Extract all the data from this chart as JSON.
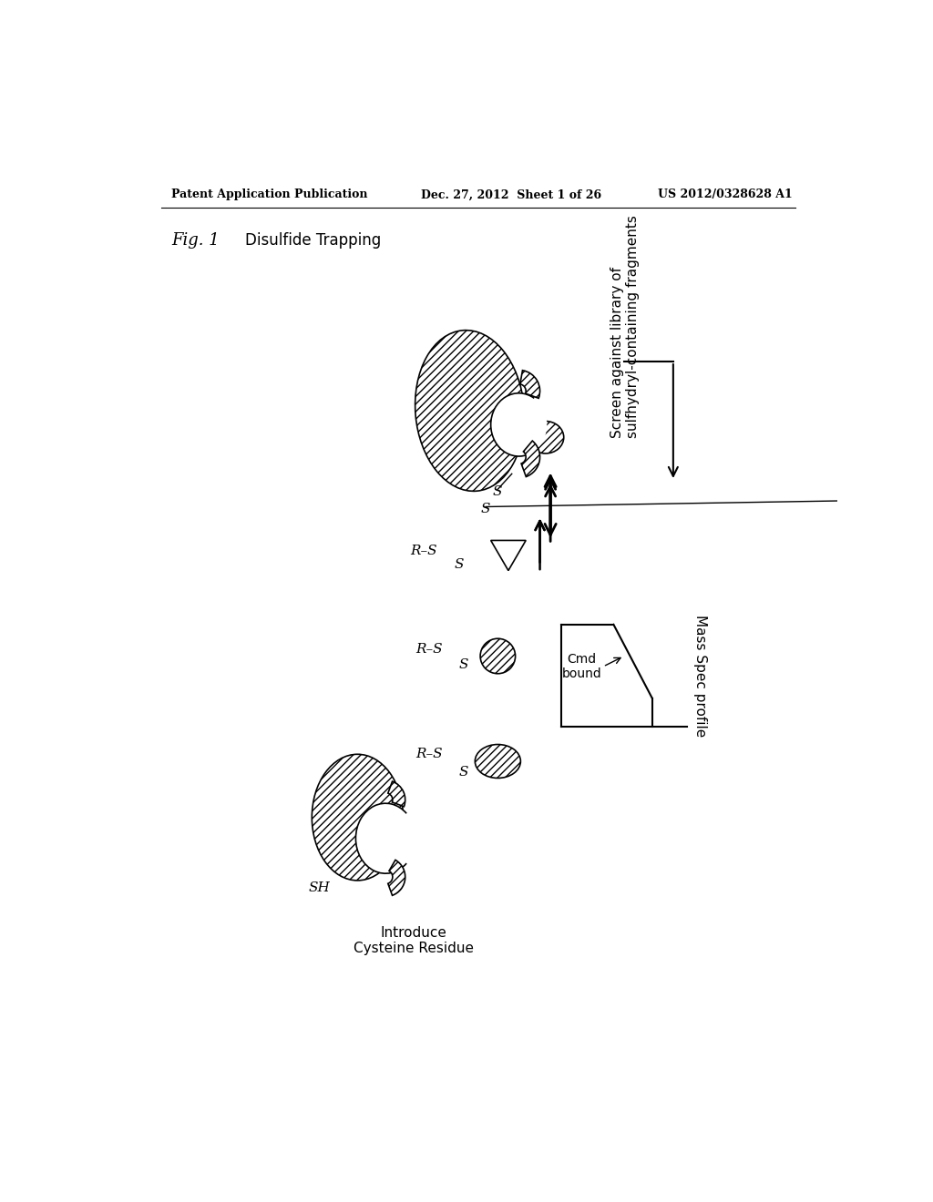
{
  "bg_color": "#ffffff",
  "header_left": "Patent Application Publication",
  "header_center": "Dec. 27, 2012  Sheet 1 of 26",
  "header_right": "US 2012/0328628 A1",
  "fig_label": "Fig. 1",
  "title_disulfide": "Disulfide Trapping",
  "title_introduce": "Introduce\nCysteine Residue",
  "title_screen": "Screen against library of\nsulfhydryl-containing fragments",
  "title_mass_spec": "Mass Spec profile",
  "label_cmd": "Cmd\nbound",
  "label_sh": "SH"
}
